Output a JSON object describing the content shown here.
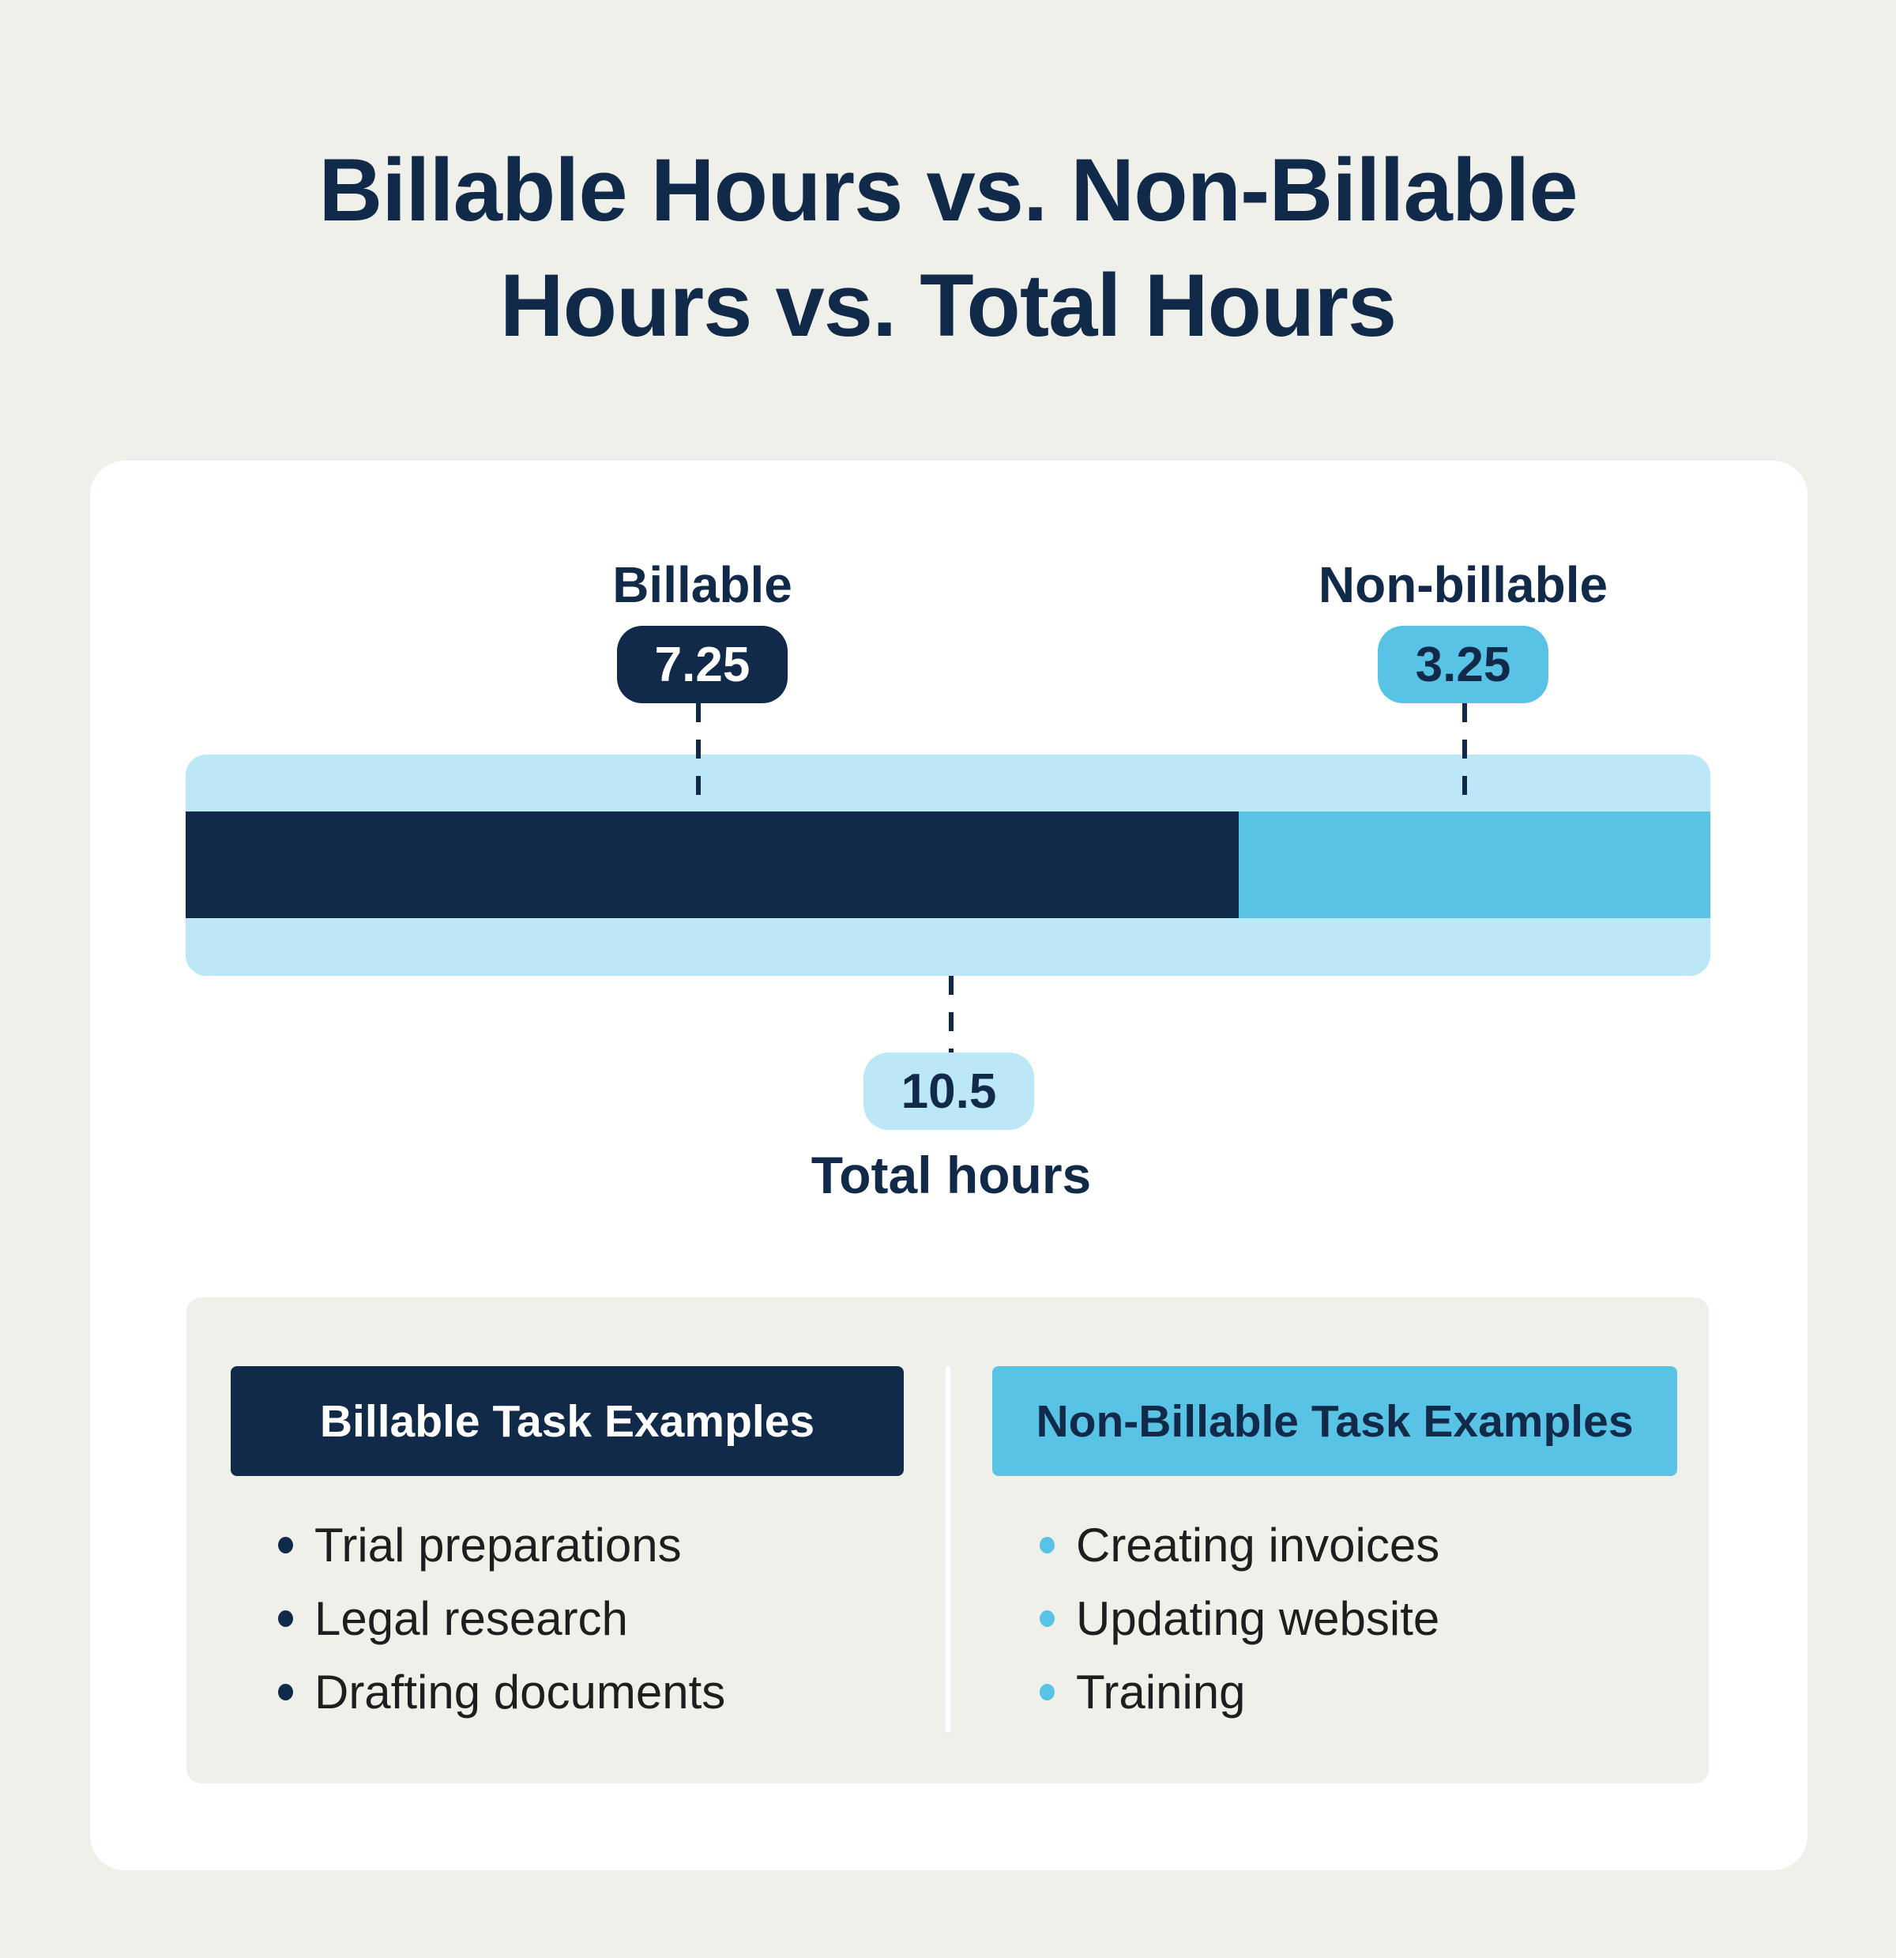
{
  "page": {
    "title_line1": "Billable Hours vs. Non-Billable",
    "title_line2": "Hours vs. Total Hours"
  },
  "chart_data": {
    "type": "bar",
    "orientation": "horizontal-stacked",
    "title": "Billable Hours vs. Non-Billable Hours vs. Total Hours",
    "segments": [
      {
        "label": "Billable",
        "value": 7.25,
        "color": "#112A4A"
      },
      {
        "label": "Non-billable",
        "value": 3.25,
        "color": "#58C3E4"
      }
    ],
    "total": {
      "label": "Total hours",
      "value": 10.5,
      "color": "#BCE7F7"
    },
    "grid": false,
    "legend_position": "callouts-above-and-below-bar"
  },
  "annotations": {
    "billable_label": "Billable",
    "billable_value": "7.25",
    "nonbillable_label": "Non-billable",
    "nonbillable_value": "3.25",
    "total_value": "10.5",
    "total_label": "Total hours"
  },
  "tasks": {
    "billable": {
      "header": "Billable Task Examples",
      "items": [
        "Trial preparations",
        "Legal research",
        "Drafting documents"
      ]
    },
    "non_billable": {
      "header": "Non-Billable Task Examples",
      "items": [
        "Creating invoices",
        "Updating website",
        "Training"
      ]
    }
  },
  "colors": {
    "navy": "#112A4A",
    "mid_blue": "#58C3E4",
    "light_blue": "#BCE7F7",
    "background": "#EEF0E9",
    "card": "#FFFFFF",
    "list_text": "#1E1E1E"
  }
}
